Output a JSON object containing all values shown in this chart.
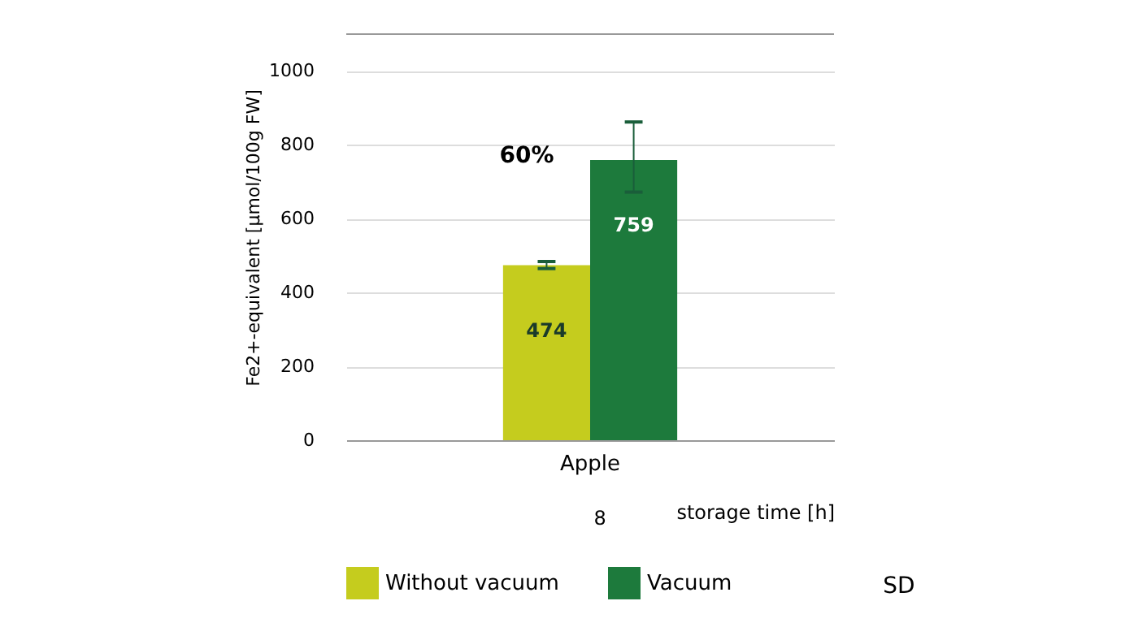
{
  "chart_data": {
    "type": "bar",
    "categories": [
      "Apple"
    ],
    "series": [
      {
        "name": "Without vacuum",
        "color": "#c5cc1e",
        "values": [
          474
        ],
        "errors": [
          [
            465,
            484
          ]
        ]
      },
      {
        "name": "Vacuum",
        "color": "#1d7a3c",
        "values": [
          759
        ],
        "errors": [
          [
            672,
            862
          ]
        ]
      }
    ],
    "ylabel": "Fe2+-equivalent [µmol/100g FW]",
    "xlabel": "storage time [h]",
    "ylim": [
      0,
      1100
    ],
    "yticks": [
      0,
      200,
      400,
      600,
      800,
      {
        "value": 1000,
        "label": "1000"
      }
    ],
    "grid": "y",
    "data_labels": true,
    "legend": "bottom",
    "annotations": [
      "60%",
      "8",
      "SD"
    ]
  }
}
